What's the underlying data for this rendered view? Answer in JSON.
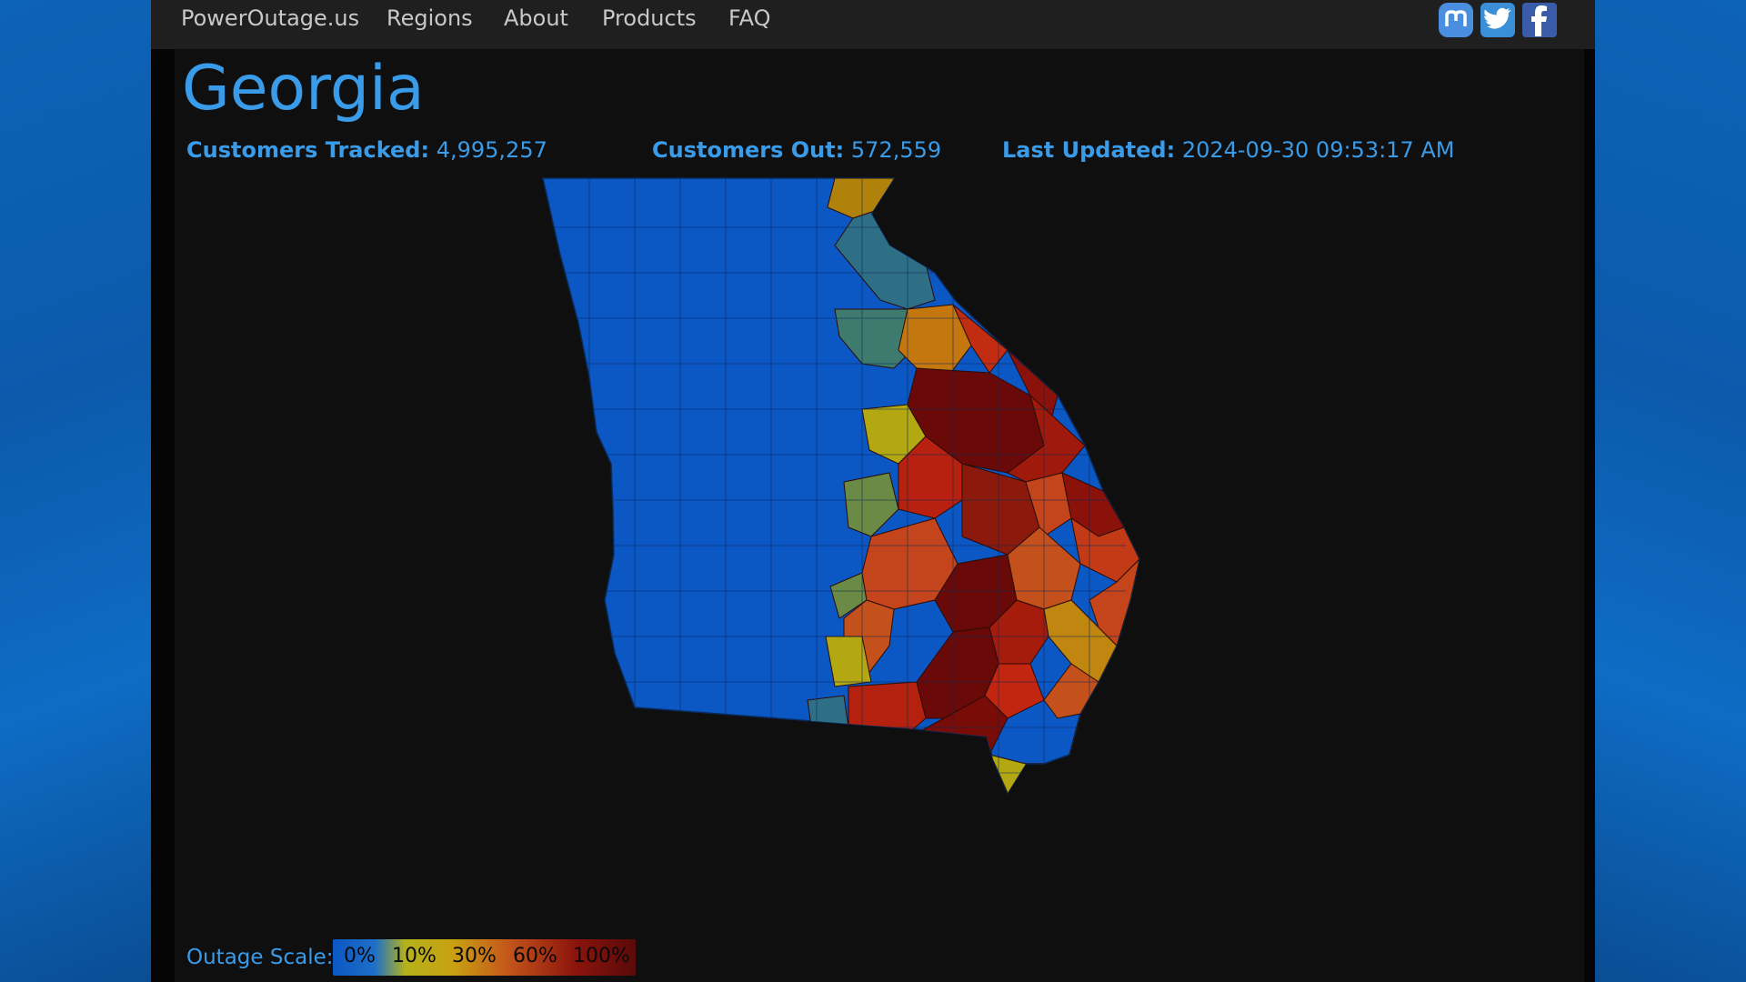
{
  "nav": {
    "brand": "PowerOutage.us",
    "items": [
      "Regions",
      "About",
      "Products",
      "FAQ"
    ],
    "social": [
      "mastodon-icon",
      "twitter-icon",
      "facebook-icon"
    ]
  },
  "page": {
    "title": "Georgia"
  },
  "stats": {
    "tracked_label": "Customers Tracked:",
    "tracked_value": "4,995,257",
    "out_label": "Customers Out:",
    "out_value": "572,559",
    "updated_label": "Last Updated:",
    "updated_value": "2024-09-30 09:53:17 AM"
  },
  "scale": {
    "label": "Outage Scale:",
    "ticks": [
      "0%",
      "10%",
      "30%",
      "60%",
      "100%"
    ]
  },
  "colors": {
    "accent": "#3a9be8",
    "blue": "#0b57c4",
    "teal": "#2f6f86",
    "olive": "#6b8a45",
    "yellow": "#b5a812",
    "orange": "#c8800f",
    "redorange": "#c4451b",
    "red": "#a01a0c",
    "darkred": "#6a0a08"
  }
}
